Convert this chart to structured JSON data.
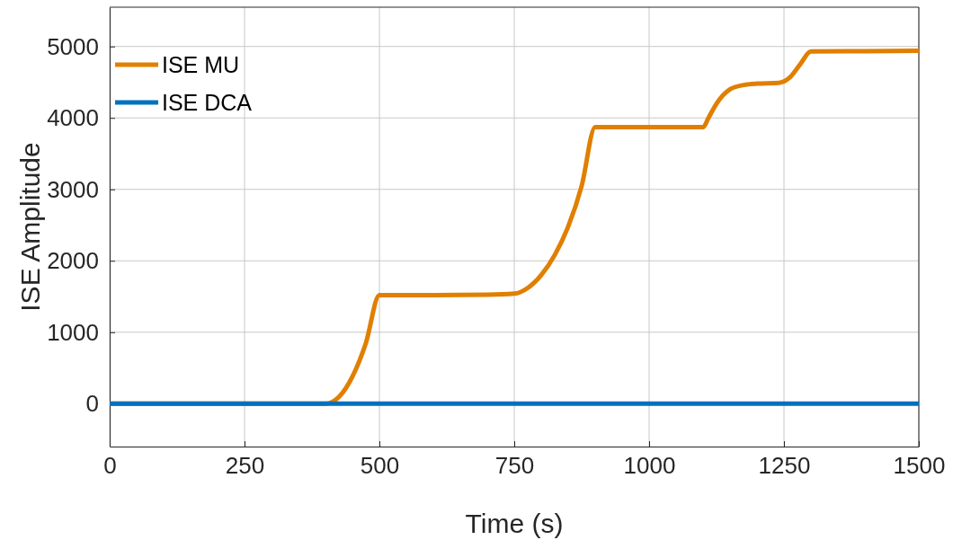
{
  "chart_data": {
    "type": "line",
    "xlabel": "Time (s)",
    "ylabel": "ISE Amplitude",
    "xlim": [
      0,
      1500
    ],
    "xticks": [
      0,
      250,
      500,
      750,
      1000,
      1250,
      1500
    ],
    "ylim": [
      -600,
      5550
    ],
    "yticks": [
      0,
      1000,
      2000,
      3000,
      4000,
      5000
    ],
    "grid": true,
    "legend": "top left",
    "line_style": "solid",
    "marker": "none",
    "series": [
      {
        "name": "ISE MU",
        "color": "#e07f00",
        "x": [
          0,
          400,
          425,
          450,
          475,
          500,
          600,
          700,
          750,
          775,
          800,
          825,
          850,
          875,
          900,
          1000,
          1100,
          1110,
          1125,
          1150,
          1175,
          1200,
          1240,
          1260,
          1280,
          1300,
          1400,
          1500
        ],
        "values": [
          0,
          0,
          95,
          380,
          850,
          1520,
          1520,
          1525,
          1540,
          1620,
          1800,
          2080,
          2480,
          3050,
          3870,
          3870,
          3870,
          4000,
          4200,
          4400,
          4460,
          4480,
          4490,
          4560,
          4750,
          4930,
          4935,
          4940
        ]
      },
      {
        "name": "ISE DCA",
        "color": "#0072bd",
        "x": [
          0,
          1500
        ],
        "values": [
          0,
          0
        ]
      }
    ]
  }
}
